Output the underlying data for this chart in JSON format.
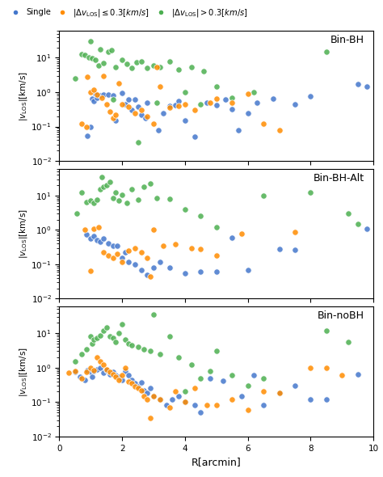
{
  "panels": [
    "Bin-BH",
    "Bin-BH-Alt",
    "Bin-noBH"
  ],
  "xlabel": "R[arcmin]",
  "xlim": [
    0,
    10
  ],
  "ylim": [
    0.01,
    60
  ],
  "colors": {
    "single": "#4477CC",
    "low_dv": "#FF8C00",
    "high_dv": "#4CAF50"
  },
  "panel0_single_x": [
    0.9,
    1.0,
    1.05,
    1.1,
    1.15,
    1.2,
    1.3,
    1.4,
    1.55,
    1.7,
    1.8,
    2.0,
    2.1,
    2.3,
    2.4,
    2.5,
    2.6,
    2.75,
    3.15,
    3.3,
    3.5,
    3.7,
    4.0,
    4.3,
    5.0,
    5.3,
    5.7,
    6.0,
    6.3,
    6.8,
    7.5,
    8.0,
    9.5,
    9.8,
    4.7,
    2.2,
    2.8,
    3.8,
    5.5
  ],
  "panel0_single_y": [
    0.055,
    0.1,
    0.65,
    0.55,
    0.9,
    0.7,
    0.8,
    0.85,
    0.85,
    0.8,
    0.15,
    0.95,
    0.45,
    0.3,
    0.6,
    0.38,
    0.22,
    0.18,
    0.08,
    0.25,
    0.4,
    0.42,
    0.15,
    0.05,
    0.42,
    0.6,
    0.08,
    0.25,
    0.5,
    0.65,
    0.45,
    0.75,
    1.7,
    1.5,
    0.5,
    0.6,
    0.5,
    0.55,
    0.32
  ],
  "panel0_low_x": [
    0.7,
    0.85,
    0.9,
    1.0,
    1.1,
    1.2,
    1.35,
    1.4,
    1.5,
    1.6,
    1.7,
    1.8,
    1.9,
    2.0,
    2.2,
    2.4,
    2.6,
    2.8,
    3.0,
    3.1,
    3.2,
    3.5,
    3.8,
    4.0,
    4.3,
    4.8,
    5.0,
    5.5,
    6.0,
    6.5,
    7.0
  ],
  "panel0_low_y": [
    0.12,
    0.1,
    2.8,
    1.0,
    1.2,
    0.85,
    0.7,
    3.0,
    0.45,
    0.28,
    0.18,
    0.22,
    1.8,
    0.45,
    0.38,
    0.25,
    0.3,
    0.2,
    0.12,
    5.5,
    1.5,
    0.35,
    0.4,
    0.45,
    0.3,
    0.5,
    0.65,
    0.5,
    0.9,
    0.12,
    0.08
  ],
  "panel0_high_x": [
    0.5,
    0.7,
    0.8,
    0.95,
    1.0,
    1.05,
    1.15,
    1.25,
    1.3,
    1.4,
    1.55,
    1.65,
    1.7,
    1.8,
    2.0,
    2.15,
    2.3,
    2.45,
    2.5,
    2.6,
    2.8,
    3.0,
    3.1,
    3.2,
    3.5,
    3.8,
    4.0,
    4.2,
    4.5,
    4.6,
    5.0,
    5.5,
    6.2,
    8.5
  ],
  "panel0_high_y": [
    2.5,
    13.0,
    12.0,
    10.0,
    30.0,
    9.5,
    8.5,
    6.0,
    18.0,
    7.0,
    15.0,
    17.0,
    0.6,
    5.5,
    8.5,
    6.5,
    5.0,
    7.5,
    0.035,
    8.0,
    5.0,
    6.0,
    0.5,
    5.5,
    8.0,
    4.5,
    1.0,
    5.5,
    0.45,
    4.0,
    1.5,
    0.7,
    1.0,
    15.0
  ],
  "panel1_single_x": [
    0.85,
    1.0,
    1.1,
    1.2,
    1.3,
    1.4,
    1.55,
    1.7,
    1.85,
    2.0,
    2.1,
    2.2,
    2.4,
    2.6,
    2.8,
    3.0,
    3.2,
    3.5,
    4.0,
    4.5,
    5.0,
    5.5,
    6.0,
    7.0,
    7.5,
    9.8
  ],
  "panel1_single_y": [
    0.75,
    0.55,
    0.65,
    0.5,
    0.45,
    0.55,
    0.4,
    0.35,
    0.35,
    0.15,
    0.22,
    0.12,
    0.1,
    0.07,
    0.05,
    0.08,
    0.12,
    0.08,
    0.055,
    0.06,
    0.06,
    0.6,
    0.07,
    0.28,
    0.27,
    1.05
  ],
  "panel1_low_x": [
    0.8,
    1.0,
    1.1,
    1.25,
    1.4,
    1.55,
    1.7,
    1.85,
    2.0,
    2.2,
    2.4,
    2.6,
    2.8,
    2.9,
    3.0,
    3.3,
    3.7,
    4.2,
    4.5,
    5.0,
    5.8,
    7.5
  ],
  "panel1_low_y": [
    1.0,
    0.065,
    1.1,
    1.2,
    0.22,
    0.18,
    0.15,
    0.2,
    0.12,
    0.25,
    0.3,
    0.22,
    0.15,
    0.045,
    1.0,
    0.35,
    0.38,
    0.3,
    0.28,
    0.18,
    0.8,
    0.85
  ],
  "panel1_high_x": [
    0.55,
    0.7,
    0.85,
    1.0,
    1.1,
    1.2,
    1.3,
    1.35,
    1.4,
    1.5,
    1.6,
    1.7,
    1.8,
    1.9,
    2.0,
    2.15,
    2.3,
    2.5,
    2.7,
    2.9,
    3.1,
    3.5,
    4.0,
    4.5,
    5.0,
    6.5,
    8.0,
    9.2,
    9.5
  ],
  "panel1_high_y": [
    3.0,
    12.5,
    6.5,
    7.0,
    6.0,
    7.5,
    15.0,
    35.0,
    18.0,
    20.0,
    25.0,
    8.5,
    12.0,
    7.0,
    10.5,
    6.0,
    15.0,
    7.5,
    18.0,
    22.0,
    8.5,
    8.0,
    4.0,
    2.5,
    1.2,
    10.0,
    12.0,
    3.0,
    1.5
  ],
  "panel2_single_x": [
    0.5,
    0.65,
    0.8,
    0.9,
    1.0,
    1.05,
    1.1,
    1.2,
    1.3,
    1.4,
    1.5,
    1.6,
    1.7,
    1.8,
    1.9,
    2.0,
    2.1,
    2.2,
    2.3,
    2.4,
    2.5,
    2.6,
    2.7,
    2.8,
    2.9,
    3.0,
    3.2,
    3.4,
    3.6,
    3.8,
    4.0,
    4.3,
    4.5,
    4.8,
    5.2,
    5.8,
    6.2,
    7.0,
    7.5,
    8.0,
    8.5,
    9.5,
    6.5
  ],
  "panel2_single_y": [
    0.75,
    0.55,
    0.45,
    0.85,
    0.75,
    0.55,
    0.8,
    0.9,
    1.0,
    0.7,
    0.85,
    0.65,
    0.75,
    0.6,
    0.55,
    0.45,
    0.8,
    0.6,
    0.45,
    0.35,
    0.28,
    0.38,
    0.22,
    0.18,
    0.25,
    0.15,
    0.12,
    0.08,
    0.12,
    0.15,
    0.1,
    0.08,
    0.05,
    0.5,
    0.42,
    0.15,
    0.6,
    0.18,
    0.3,
    0.12,
    0.12,
    0.65,
    0.08
  ],
  "panel2_low_x": [
    0.3,
    0.5,
    0.7,
    0.85,
    1.0,
    1.1,
    1.2,
    1.3,
    1.4,
    1.5,
    1.6,
    1.7,
    1.8,
    1.9,
    2.0,
    2.1,
    2.2,
    2.3,
    2.4,
    2.5,
    2.6,
    2.7,
    2.8,
    3.0,
    3.2,
    3.5,
    3.7,
    4.0,
    4.3,
    4.7,
    5.0,
    5.5,
    6.0,
    7.0,
    8.0,
    8.5,
    9.0,
    2.9,
    6.5
  ],
  "panel2_low_y": [
    0.7,
    0.8,
    0.5,
    0.75,
    1.0,
    0.85,
    2.0,
    1.5,
    1.2,
    0.9,
    0.75,
    0.65,
    0.55,
    0.45,
    0.6,
    1.0,
    0.4,
    0.35,
    0.28,
    0.25,
    0.22,
    0.15,
    0.12,
    0.15,
    0.12,
    0.07,
    0.2,
    0.1,
    0.25,
    0.08,
    0.08,
    0.12,
    0.06,
    0.18,
    1.0,
    1.0,
    0.6,
    0.035,
    0.2
  ],
  "panel2_high_x": [
    0.5,
    0.7,
    0.85,
    1.0,
    1.05,
    1.1,
    1.2,
    1.3,
    1.4,
    1.5,
    1.6,
    1.7,
    1.8,
    1.9,
    2.0,
    2.1,
    2.2,
    2.3,
    2.5,
    2.7,
    2.9,
    3.0,
    3.2,
    3.5,
    3.8,
    4.0,
    4.2,
    4.5,
    4.8,
    5.0,
    5.5,
    6.0,
    6.5,
    8.5,
    9.2
  ],
  "panel2_high_y": [
    1.5,
    2.5,
    3.5,
    8.0,
    5.0,
    6.5,
    7.5,
    8.5,
    12.0,
    15.0,
    8.0,
    7.5,
    5.5,
    10.0,
    18.0,
    6.5,
    5.0,
    4.5,
    4.0,
    3.5,
    3.0,
    35.0,
    2.5,
    8.0,
    2.0,
    0.2,
    1.2,
    0.5,
    0.8,
    3.0,
    0.6,
    0.3,
    0.5,
    12.0,
    5.5
  ]
}
